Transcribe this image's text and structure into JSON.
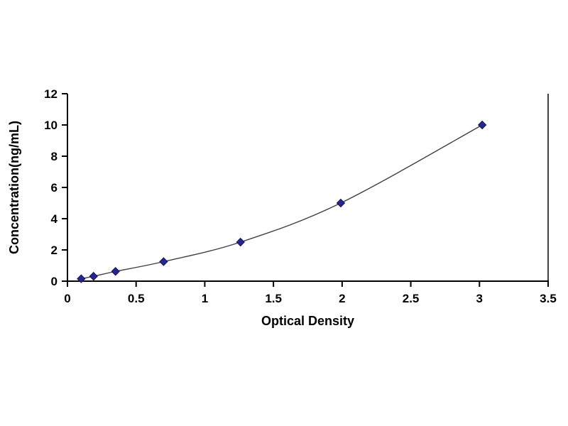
{
  "chart_data": {
    "type": "line",
    "title": "",
    "xlabel": "Optical Density",
    "ylabel": "Concentration(ng/mL)",
    "xlim": [
      0,
      3.5
    ],
    "ylim": [
      0,
      12
    ],
    "xticks": [
      0,
      0.5,
      1,
      1.5,
      2,
      2.5,
      3,
      3.5
    ],
    "yticks": [
      0,
      2,
      4,
      6,
      8,
      10,
      12
    ],
    "grid": false,
    "legend": false,
    "marker": "diamond",
    "marker_color": "#26268C",
    "line_color": "#404040",
    "axis_color": "#000000",
    "series": [
      {
        "name": "standard-curve",
        "points": [
          [
            0.1,
            0.156
          ],
          [
            0.19,
            0.312
          ],
          [
            0.35,
            0.625
          ],
          [
            0.7,
            1.25
          ],
          [
            1.26,
            2.5
          ],
          [
            1.99,
            5.0
          ],
          [
            3.02,
            10.0
          ]
        ]
      }
    ]
  }
}
